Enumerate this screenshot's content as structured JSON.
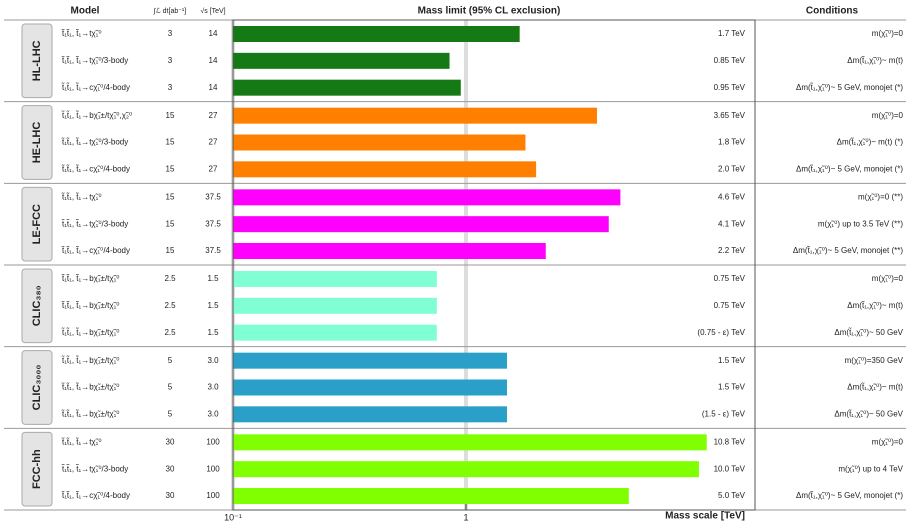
{
  "chart_data": {
    "type": "bar",
    "orientation": "horizontal",
    "headers": {
      "model": "Model",
      "lumi": "∫ℒ dt[ab⁻¹]",
      "energy": "√s [TeV]",
      "limit": "Mass limit (95% CL exclusion)",
      "conditions": "Conditions"
    },
    "xlabel": "Mass scale [TeV]",
    "xscale": "log",
    "xlim": [
      0.1,
      17.4
    ],
    "xticks": [
      {
        "value": 0.1,
        "label": "10⁻¹"
      },
      1
    ],
    "groups": [
      {
        "name": "HL-LHC",
        "color": "#157a15",
        "rows": [
          {
            "model": "t̃₁t̃₁, t̃₁→tχ̃₁⁰",
            "lumi": "3",
            "energy": "14",
            "value": 1.7,
            "value_label": "1.7 TeV",
            "condition": "m(χ̃₁⁰)=0"
          },
          {
            "model": "t̃₁t̃₁, t̃₁→tχ̃₁⁰/3-body",
            "lumi": "3",
            "energy": "14",
            "value": 0.85,
            "value_label": "0.85 TeV",
            "condition": "Δm(t̃₁,χ̃₁⁰)~ m(t)"
          },
          {
            "model": "t̃₁t̃₁, t̃₁→cχ̃₁⁰/4-body",
            "lumi": "3",
            "energy": "14",
            "value": 0.95,
            "value_label": "0.95 TeV",
            "condition": "Δm(t̃₁,χ̃₁⁰)~ 5 GeV, monojet (*)"
          }
        ]
      },
      {
        "name": "HE-LHC",
        "color": "#ff8000",
        "rows": [
          {
            "model": "t̃₁t̃₁, t̃₁→bχ̃₁±/tχ̃₁⁰,χ̃₂⁰",
            "lumi": "15",
            "energy": "27",
            "value": 3.65,
            "value_label": "3.65 TeV",
            "condition": "m(χ̃₁⁰)=0"
          },
          {
            "model": "t̃₁t̃₁, t̃₁→tχ̃₁⁰/3-body",
            "lumi": "15",
            "energy": "27",
            "value": 1.8,
            "value_label": "1.8 TeV",
            "condition": "Δm(t̃₁,χ̃₁⁰)~ m(t) (*)"
          },
          {
            "model": "t̃₁t̃₁, t̃₁→cχ̃₁⁰/4-body",
            "lumi": "15",
            "energy": "27",
            "value": 2.0,
            "value_label": "2.0 TeV",
            "condition": "Δm(t̃₁,χ̃₁⁰)~ 5 GeV, monojet (*)"
          }
        ]
      },
      {
        "name": "LE-FCC",
        "color": "#ff00ff",
        "rows": [
          {
            "model": "t̃₁t̃₁, t̃₁→tχ̃₁⁰",
            "lumi": "15",
            "energy": "37.5",
            "value": 4.6,
            "value_label": "4.6 TeV",
            "condition": "m(χ̃₁⁰)=0 (**)"
          },
          {
            "model": "t̃₁t̃₁, t̃₁→tχ̃₁⁰/3-body",
            "lumi": "15",
            "energy": "37.5",
            "value": 4.1,
            "value_label": "4.1 TeV",
            "condition": "m(χ̃₁⁰) up to 3.5 TeV (**)"
          },
          {
            "model": "t̃₁t̃₁, t̃₁→cχ̃₁⁰/4-body",
            "lumi": "15",
            "energy": "37.5",
            "value": 2.2,
            "value_label": "2.2 TeV",
            "condition": "Δm(t̃₁,χ̃₁⁰)~ 5 GeV, monojet (**)"
          }
        ]
      },
      {
        "name": "CLIC₃₈₀",
        "color": "#80ffd4",
        "rows": [
          {
            "model": "t̃₁t̃₁, t̃₁→bχ̃₁±/tχ̃₁⁰",
            "lumi": "2.5",
            "energy": "1.5",
            "value": 0.75,
            "value_label": "0.75 TeV",
            "condition": "m(χ̃₁⁰)=0"
          },
          {
            "model": "t̃₁t̃₁, t̃₁→bχ̃₁±/tχ̃₁⁰",
            "lumi": "2.5",
            "energy": "1.5",
            "value": 0.75,
            "value_label": "0.75 TeV",
            "condition": "Δm(t̃₁,χ̃₁⁰)~ m(t)"
          },
          {
            "model": "t̃₁t̃₁, t̃₁→bχ̃₁±/tχ̃₁⁰",
            "lumi": "2.5",
            "energy": "1.5",
            "value": 0.75,
            "value_label": "(0.75 - ε) TeV",
            "condition": "Δm(t̃₁,χ̃₁⁰)~ 50 GeV"
          }
        ]
      },
      {
        "name": "CLIC₃₀₀₀",
        "color": "#2aa0c8",
        "rows": [
          {
            "model": "t̃₁t̃₁, t̃₁→bχ̃₁±/tχ̃₁⁰",
            "lumi": "5",
            "energy": "3.0",
            "value": 1.5,
            "value_label": "1.5 TeV",
            "condition": "m(χ̃₁⁰)=350 GeV"
          },
          {
            "model": "t̃₁t̃₁, t̃₁→bχ̃₁±/tχ̃₁⁰",
            "lumi": "5",
            "energy": "3.0",
            "value": 1.5,
            "value_label": "1.5 TeV",
            "condition": "Δm(t̃₁,χ̃₁⁰)~ m(t)"
          },
          {
            "model": "t̃₁t̃₁, t̃₁→bχ̃₁±/tχ̃₁⁰",
            "lumi": "5",
            "energy": "3.0",
            "value": 1.5,
            "value_label": "(1.5 - ε) TeV",
            "condition": "Δm(t̃₁,χ̃₁⁰)~ 50 GeV"
          }
        ]
      },
      {
        "name": "FCC-hh",
        "color": "#80ff00",
        "rows": [
          {
            "model": "t̃₁t̃₁, t̃₁→tχ̃₁⁰",
            "lumi": "30",
            "energy": "100",
            "value": 10.8,
            "value_label": "10.8 TeV",
            "condition": "m(χ̃₁⁰)=0"
          },
          {
            "model": "t̃₁t̃₁, t̃₁→tχ̃₁⁰/3-body",
            "lumi": "30",
            "energy": "100",
            "value": 10.0,
            "value_label": "10.0 TeV",
            "condition": "m(χ̃₁⁰) up to 4 TeV"
          },
          {
            "model": "t̃₁t̃₁, t̃₁→cχ̃₁⁰/4-body",
            "lumi": "30",
            "energy": "100",
            "value": 5.0,
            "value_label": "5.0 TeV",
            "condition": "Δm(t̃₁,χ̃₁⁰)~ 5 GeV, monojet (*)"
          }
        ]
      }
    ]
  }
}
